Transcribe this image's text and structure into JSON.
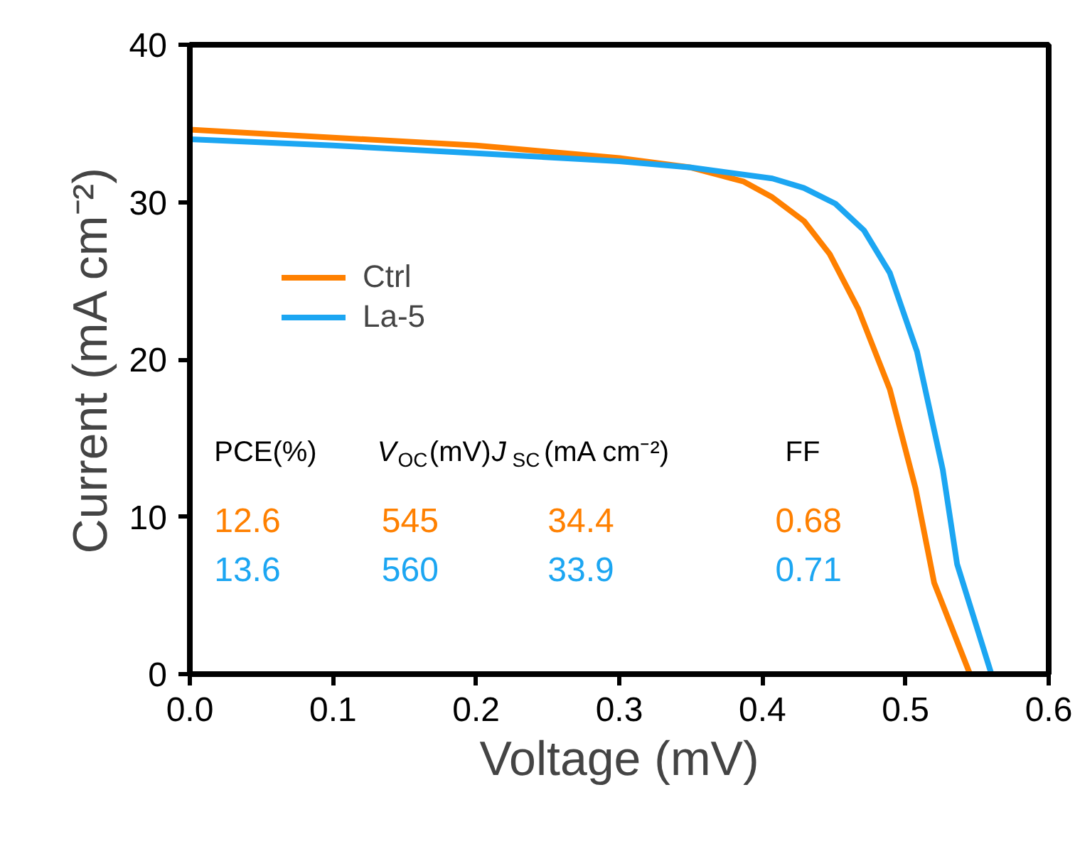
{
  "chart_data": {
    "type": "line",
    "xlabel": "Voltage (mV)",
    "ylabel": "Current (mA cm⁻²)",
    "xlim": [
      0,
      0.6
    ],
    "ylim": [
      0,
      40
    ],
    "xticks": [
      {
        "value": 0,
        "label": "0.0"
      },
      0.1,
      0.2,
      0.3,
      0.4,
      0.5,
      0.6
    ],
    "yticks": [
      0,
      10,
      20,
      30,
      40
    ],
    "grid": false,
    "legend": "top left",
    "marker": "none",
    "line_style": "solid",
    "series": [
      {
        "name": "Ctrl",
        "color": "#ff8000",
        "x": [
          0,
          0.1,
          0.2,
          0.3,
          0.35,
          0.387,
          0.407,
          0.429,
          0.447,
          0.467,
          0.489,
          0.507,
          0.52,
          0.545
        ],
        "values": [
          34.6,
          34.1,
          33.6,
          32.8,
          32.2,
          31.3,
          30.3,
          28.8,
          26.7,
          23.2,
          18.1,
          11.8,
          5.8,
          0
        ]
      },
      {
        "name": "La-5",
        "color": "#1ca6f2",
        "x": [
          0,
          0.1,
          0.2,
          0.3,
          0.35,
          0.407,
          0.429,
          0.451,
          0.471,
          0.489,
          0.508,
          0.526,
          0.536,
          0.56
        ],
        "values": [
          34.0,
          33.6,
          33.1,
          32.6,
          32.2,
          31.5,
          30.9,
          29.9,
          28.2,
          25.5,
          20.5,
          13.0,
          7.0,
          0
        ]
      }
    ],
    "annotations": [
      "PCE(%)",
      "V$_{OC}$(mV)",
      "J$_{SC}$(mA cm⁻²)",
      "FF",
      "12.6",
      "545",
      "34.4",
      "0.68",
      "13.6",
      "560",
      "33.9",
      "0.71"
    ]
  }
}
